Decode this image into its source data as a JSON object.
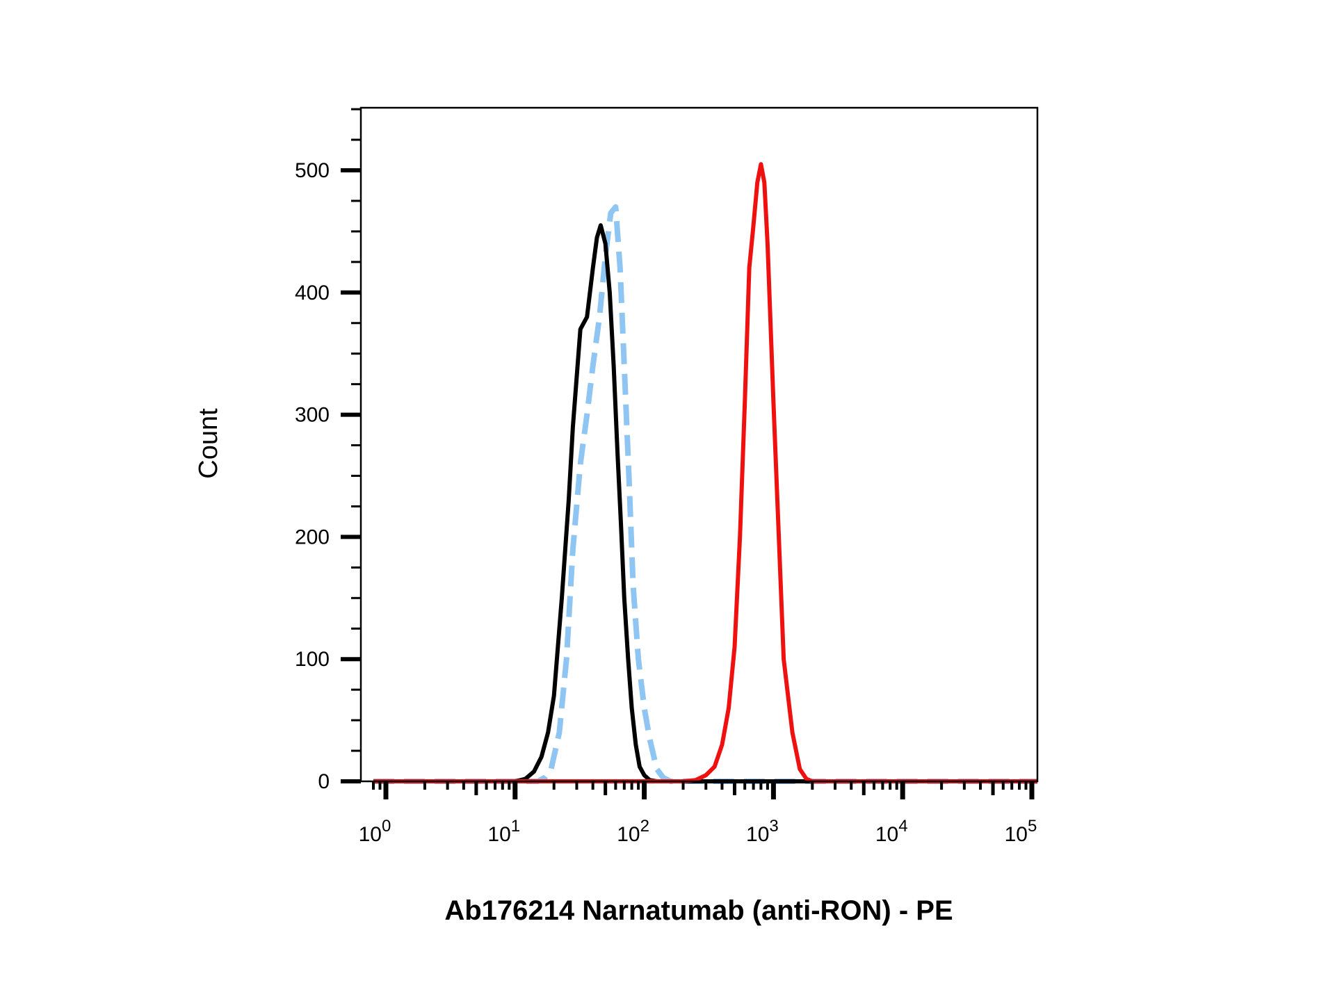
{
  "chart_data": {
    "type": "line",
    "title": "",
    "xlabel": "Ab176214 Narnatumab (anti-RON) - PE",
    "ylabel": "Count",
    "x_scale": "log",
    "xlim": [
      0.8,
      150000
    ],
    "ylim": [
      0,
      550
    ],
    "grid": false,
    "legend": "none",
    "y_ticks": [
      {
        "value": 0,
        "label": "0"
      },
      {
        "value": 100,
        "label": "100"
      },
      {
        "value": 200,
        "label": "200"
      },
      {
        "value": 300,
        "label": "300"
      },
      {
        "value": 400,
        "label": "400"
      },
      {
        "value": 500,
        "label": "500"
      }
    ],
    "x_ticks": [
      {
        "value": 1,
        "base": "10",
        "exp": "0"
      },
      {
        "value": 10,
        "base": "10",
        "exp": "1"
      },
      {
        "value": 100,
        "base": "10",
        "exp": "2"
      },
      {
        "value": 1000,
        "base": "10",
        "exp": "3"
      },
      {
        "value": 10000,
        "base": "10",
        "exp": "4"
      },
      {
        "value": 100000,
        "base": "10",
        "exp": "5"
      }
    ],
    "series": [
      {
        "color": "#8ec5f2",
        "style": "dashed",
        "x": [
          0.8,
          15,
          17,
          19,
          22,
          25,
          28,
          32,
          36,
          40,
          45,
          50,
          55,
          60,
          65,
          70,
          76,
          82,
          90,
          100,
          110,
          125,
          140,
          160,
          180,
          200,
          150000
        ],
        "y": [
          0,
          0,
          3,
          10,
          40,
          100,
          190,
          260,
          300,
          340,
          380,
          430,
          465,
          470,
          420,
          340,
          250,
          160,
          100,
          60,
          35,
          10,
          3,
          0,
          0,
          0,
          0
        ]
      },
      {
        "color": "#000000",
        "style": "solid",
        "x": [
          0.8,
          10,
          12,
          14,
          16,
          18,
          20,
          23,
          26,
          28,
          32,
          36,
          40,
          43,
          46,
          50,
          54,
          58,
          62,
          66,
          70,
          75,
          80,
          86,
          92,
          100,
          110,
          125,
          140,
          150000
        ],
        "y": [
          0,
          0,
          2,
          8,
          20,
          40,
          70,
          150,
          230,
          290,
          370,
          380,
          420,
          445,
          455,
          440,
          400,
          340,
          270,
          210,
          150,
          100,
          60,
          30,
          12,
          5,
          1,
          0,
          0,
          0
        ]
      },
      {
        "color": "#ef1010",
        "style": "solid",
        "x": [
          0.8,
          200,
          250,
          300,
          350,
          400,
          450,
          500,
          550,
          600,
          650,
          700,
          750,
          800,
          850,
          900,
          1000,
          1100,
          1200,
          1400,
          1600,
          1800,
          2000,
          150000
        ],
        "y": [
          0,
          0,
          1,
          5,
          12,
          30,
          60,
          110,
          200,
          310,
          420,
          455,
          490,
          505,
          490,
          440,
          310,
          200,
          100,
          40,
          10,
          2,
          0,
          0
        ]
      }
    ]
  }
}
